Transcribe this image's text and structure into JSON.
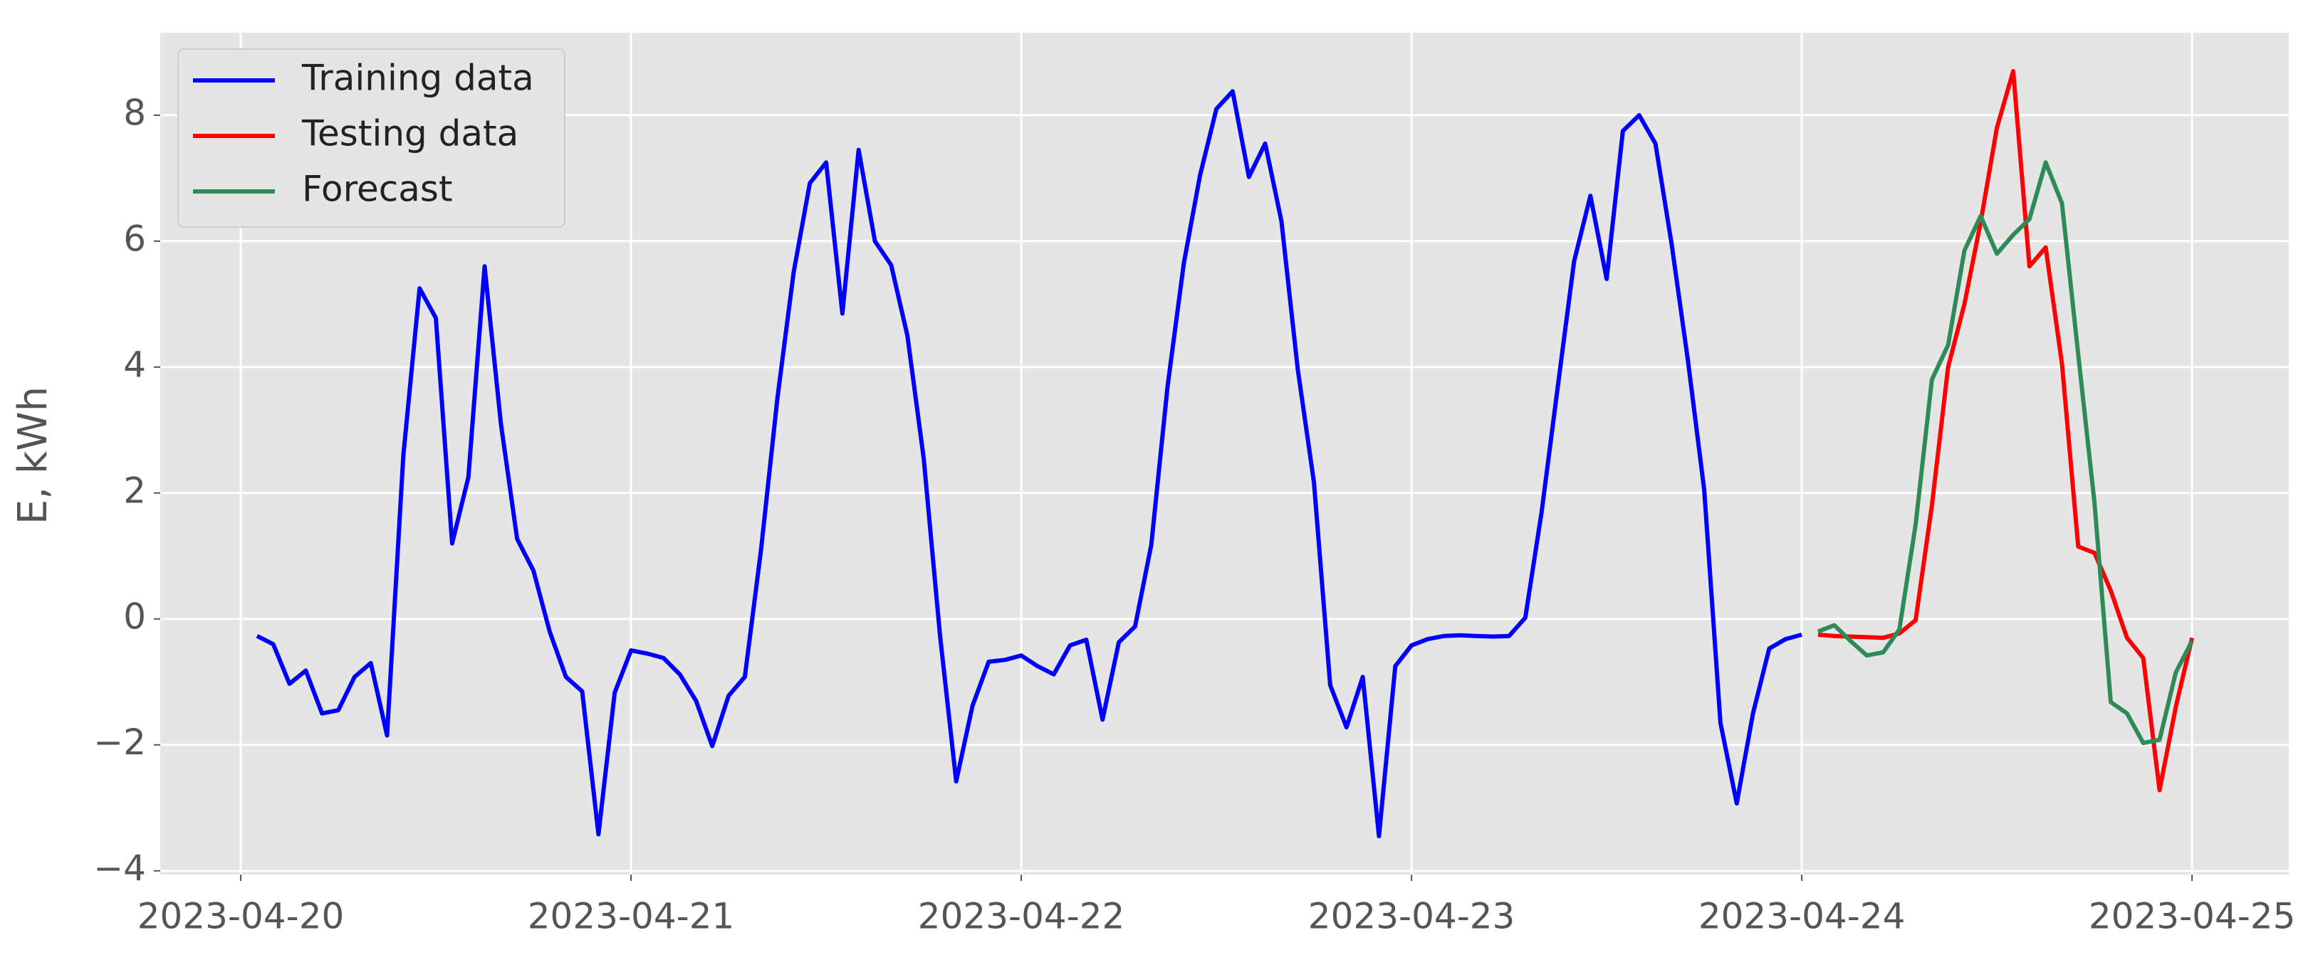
{
  "chart_data": {
    "type": "line",
    "ylabel": "E, kWh",
    "xlim": [
      "2023-04-19T19:03",
      "2023-04-25T05:57"
    ],
    "xticks": [
      "2023-04-20",
      "2023-04-21",
      "2023-04-22",
      "2023-04-23",
      "2023-04-24",
      "2023-04-25"
    ],
    "ylim": [
      -4.06,
      9.31
    ],
    "yticks": [
      {
        "value": -4,
        "label": "−4"
      },
      {
        "value": -2,
        "label": "−2"
      },
      0,
      2,
      4,
      6,
      8
    ],
    "grid": true,
    "legend": "upper left",
    "series": [
      {
        "name": "Training data",
        "color": "#0000ff",
        "x": [
          "2023-04-20T01:00",
          "2023-04-20T02:00",
          "2023-04-20T03:00",
          "2023-04-20T04:00",
          "2023-04-20T05:00",
          "2023-04-20T06:00",
          "2023-04-20T07:00",
          "2023-04-20T08:00",
          "2023-04-20T09:00",
          "2023-04-20T10:00",
          "2023-04-20T11:00",
          "2023-04-20T12:00",
          "2023-04-20T13:00",
          "2023-04-20T14:00",
          "2023-04-20T15:00",
          "2023-04-20T16:00",
          "2023-04-20T17:00",
          "2023-04-20T18:00",
          "2023-04-20T19:00",
          "2023-04-20T20:00",
          "2023-04-20T21:00",
          "2023-04-20T22:00",
          "2023-04-20T23:00",
          "2023-04-21T00:00",
          "2023-04-21T01:00",
          "2023-04-21T02:00",
          "2023-04-21T03:00",
          "2023-04-21T04:00",
          "2023-04-21T05:00",
          "2023-04-21T06:00",
          "2023-04-21T07:00",
          "2023-04-21T08:00",
          "2023-04-21T09:00",
          "2023-04-21T10:00",
          "2023-04-21T11:00",
          "2023-04-21T12:00",
          "2023-04-21T13:00",
          "2023-04-21T14:00",
          "2023-04-21T15:00",
          "2023-04-21T16:00",
          "2023-04-21T17:00",
          "2023-04-21T18:00",
          "2023-04-21T19:00",
          "2023-04-21T20:00",
          "2023-04-21T21:00",
          "2023-04-21T22:00",
          "2023-04-21T23:00",
          "2023-04-22T00:00",
          "2023-04-22T01:00",
          "2023-04-22T02:00",
          "2023-04-22T03:00",
          "2023-04-22T04:00",
          "2023-04-22T05:00",
          "2023-04-22T06:00",
          "2023-04-22T07:00",
          "2023-04-22T08:00",
          "2023-04-22T09:00",
          "2023-04-22T10:00",
          "2023-04-22T11:00",
          "2023-04-22T12:00",
          "2023-04-22T13:00",
          "2023-04-22T14:00",
          "2023-04-22T15:00",
          "2023-04-22T16:00",
          "2023-04-22T17:00",
          "2023-04-22T18:00",
          "2023-04-22T19:00",
          "2023-04-22T20:00",
          "2023-04-22T21:00",
          "2023-04-22T22:00",
          "2023-04-22T23:00",
          "2023-04-23T00:00",
          "2023-04-23T01:00",
          "2023-04-23T02:00",
          "2023-04-23T03:00",
          "2023-04-23T04:00",
          "2023-04-23T05:00",
          "2023-04-23T06:00",
          "2023-04-23T07:00",
          "2023-04-23T08:00",
          "2023-04-23T09:00",
          "2023-04-23T10:00",
          "2023-04-23T11:00",
          "2023-04-23T12:00",
          "2023-04-23T13:00",
          "2023-04-23T14:00",
          "2023-04-23T15:00",
          "2023-04-23T16:00",
          "2023-04-23T17:00",
          "2023-04-23T18:00",
          "2023-04-23T19:00",
          "2023-04-23T20:00",
          "2023-04-23T21:00",
          "2023-04-23T22:00",
          "2023-04-23T23:00",
          "2023-04-24T00:00"
        ],
        "values": [
          -0.27,
          -0.4,
          -1.03,
          -0.82,
          -1.5,
          -1.45,
          -0.92,
          -0.7,
          -1.85,
          2.6,
          5.25,
          4.78,
          1.2,
          2.25,
          5.6,
          3.1,
          1.27,
          0.77,
          -0.2,
          -0.92,
          -1.15,
          -3.42,
          -1.17,
          -0.5,
          -0.55,
          -0.62,
          -0.88,
          -1.3,
          -2.02,
          -1.22,
          -0.92,
          1.1,
          3.5,
          5.5,
          6.92,
          7.25,
          4.85,
          7.45,
          6.0,
          5.62,
          4.5,
          2.55,
          -0.25,
          -2.58,
          -1.38,
          -0.68,
          -0.65,
          -0.58,
          -0.75,
          -0.88,
          -0.42,
          -0.33,
          -1.6,
          -0.37,
          -0.12,
          1.18,
          3.7,
          5.65,
          7.05,
          8.1,
          8.38,
          7.02,
          7.55,
          6.32,
          3.97,
          2.17,
          -1.05,
          -1.72,
          -0.92,
          -3.45,
          -0.75,
          -0.42,
          -0.32,
          -0.27,
          -0.26,
          -0.27,
          -0.28,
          -0.27,
          0.02,
          1.7,
          3.7,
          5.68,
          6.72,
          5.4,
          7.75,
          8.0,
          7.55,
          5.95,
          4.1,
          2.05,
          -1.65,
          -2.93,
          -1.5,
          -0.47,
          -0.32,
          -0.25
        ]
      },
      {
        "name": "Testing data",
        "color": "#ff0000",
        "x": [
          "2023-04-24T01:00",
          "2023-04-24T02:00",
          "2023-04-24T03:00",
          "2023-04-24T04:00",
          "2023-04-24T05:00",
          "2023-04-24T06:00",
          "2023-04-24T07:00",
          "2023-04-24T08:00",
          "2023-04-24T09:00",
          "2023-04-24T10:00",
          "2023-04-24T11:00",
          "2023-04-24T12:00",
          "2023-04-24T13:00",
          "2023-04-24T14:00",
          "2023-04-24T15:00",
          "2023-04-24T16:00",
          "2023-04-24T17:00",
          "2023-04-24T18:00",
          "2023-04-24T19:00",
          "2023-04-24T20:00",
          "2023-04-24T21:00",
          "2023-04-24T22:00",
          "2023-04-24T23:00",
          "2023-04-25T00:00"
        ],
        "values": [
          -0.25,
          -0.27,
          -0.28,
          -0.29,
          -0.3,
          -0.23,
          -0.02,
          1.8,
          4.0,
          5.0,
          6.3,
          7.8,
          8.7,
          5.6,
          5.9,
          4.05,
          1.15,
          1.05,
          0.45,
          -0.3,
          -0.62,
          -2.72,
          -1.4,
          -0.3
        ]
      },
      {
        "name": "Forecast",
        "color": "#2e8b57",
        "x": [
          "2023-04-24T01:00",
          "2023-04-24T02:00",
          "2023-04-24T03:00",
          "2023-04-24T04:00",
          "2023-04-24T05:00",
          "2023-04-24T06:00",
          "2023-04-24T07:00",
          "2023-04-24T08:00",
          "2023-04-24T09:00",
          "2023-04-24T10:00",
          "2023-04-24T11:00",
          "2023-04-24T12:00",
          "2023-04-24T13:00",
          "2023-04-24T14:00",
          "2023-04-24T15:00",
          "2023-04-24T16:00",
          "2023-04-24T17:00",
          "2023-04-24T18:00",
          "2023-04-24T19:00",
          "2023-04-24T20:00",
          "2023-04-24T21:00",
          "2023-04-24T22:00",
          "2023-04-24T23:00",
          "2023-04-25T00:00"
        ],
        "values": [
          -0.2,
          -0.1,
          -0.35,
          -0.58,
          -0.53,
          -0.17,
          1.5,
          3.8,
          4.35,
          5.85,
          6.4,
          5.8,
          6.1,
          6.35,
          7.25,
          6.6,
          4.2,
          1.85,
          -1.32,
          -1.5,
          -1.97,
          -1.92,
          -0.85,
          -0.35
        ]
      }
    ]
  }
}
